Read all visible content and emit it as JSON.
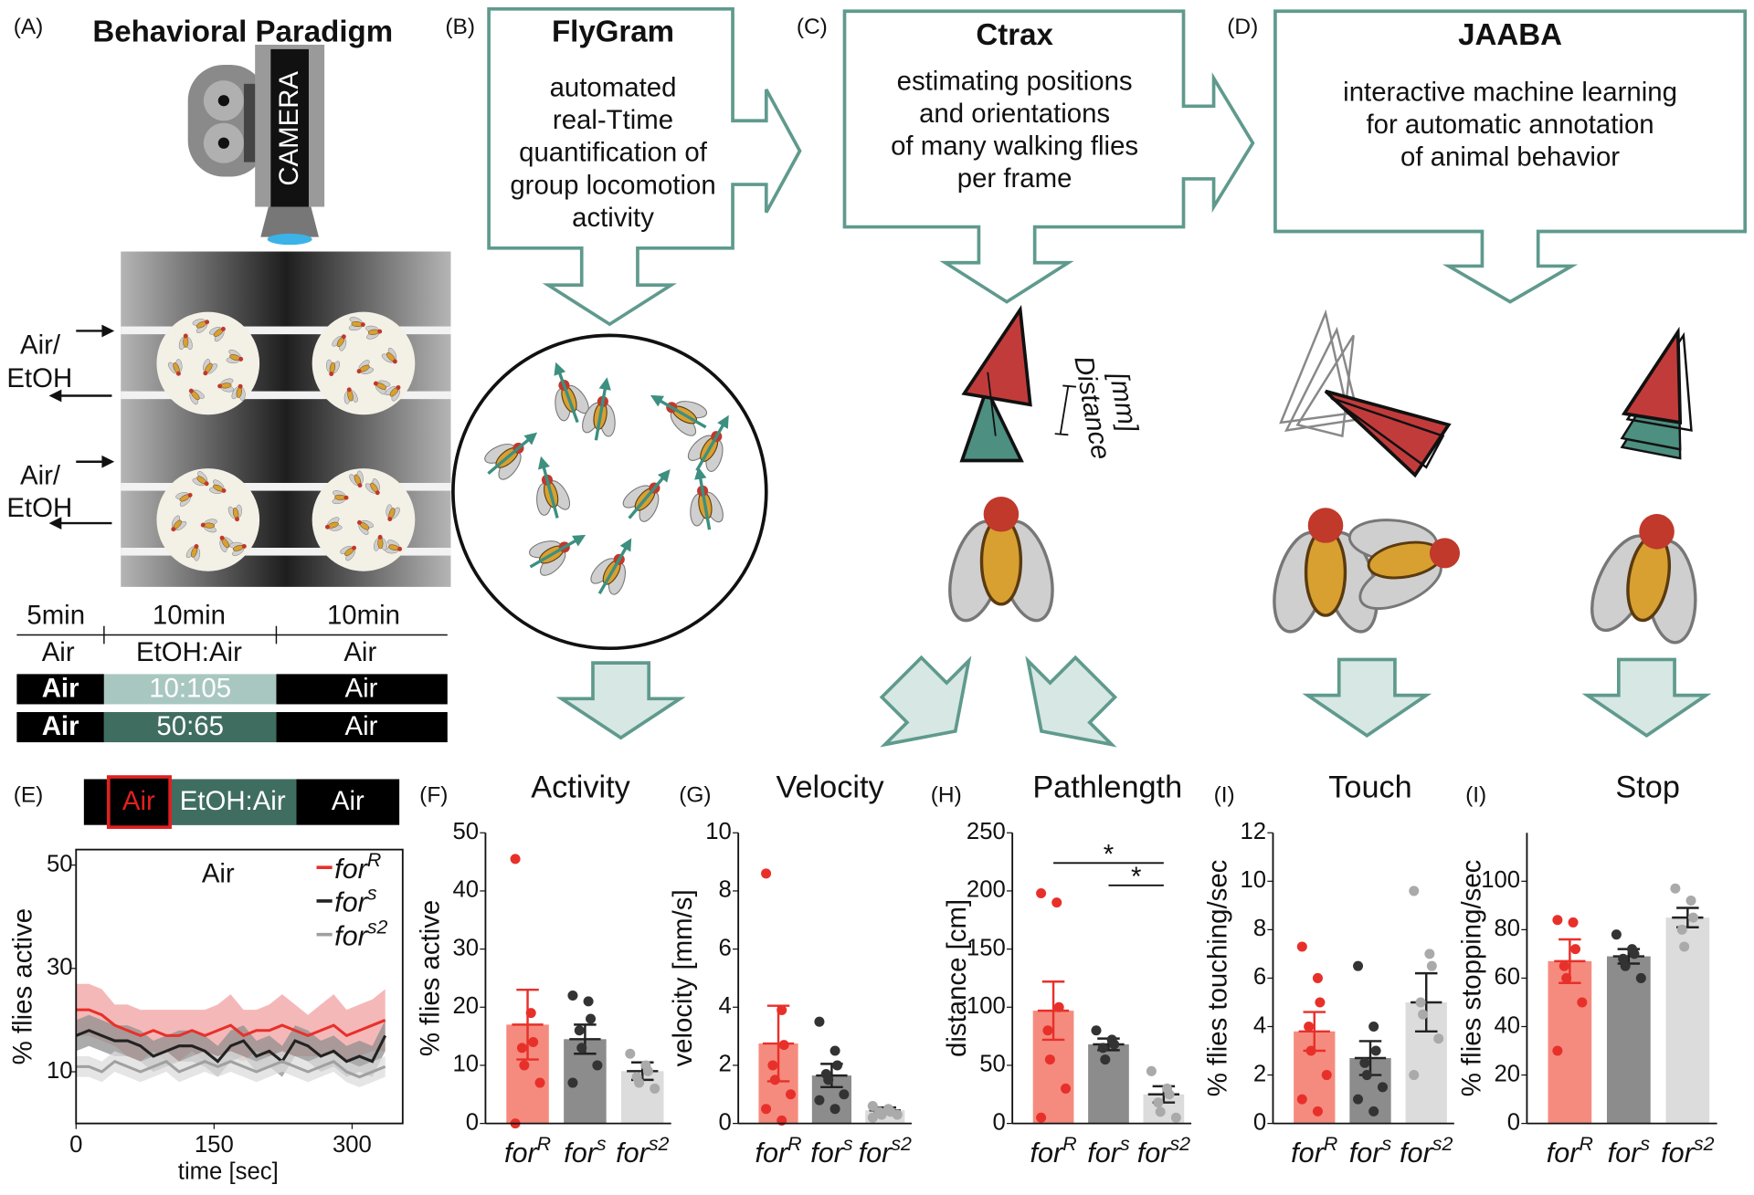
{
  "panels": {
    "a": {
      "label": "(A)",
      "title": "Behavioral Paradigm",
      "camera": "CAMERA",
      "inlets": [
        [
          "Air/",
          "EtOH"
        ],
        [
          "Air/",
          "EtOH"
        ]
      ],
      "durations": [
        "5min",
        "10min",
        "10min"
      ],
      "phases": [
        "Air",
        "EtOH:Air",
        "Air"
      ],
      "protocols": [
        [
          "Air",
          "10:105",
          "Air"
        ],
        [
          "Air",
          "50:65",
          "Air"
        ]
      ]
    },
    "b": {
      "label": "(B)",
      "title": "FlyGram",
      "lines": [
        "automated",
        "real-Ttime",
        "quantification of",
        "group locomotion",
        "activity"
      ]
    },
    "c": {
      "label": "(C)",
      "title": "Ctrax",
      "lines": [
        "estimating positions",
        "and orientations",
        "of many walking flies",
        "per frame"
      ],
      "distance": [
        "Distance",
        "[mm]"
      ]
    },
    "d": {
      "label": "(D)",
      "title": "JAABA",
      "lines": [
        "interactive machine learning",
        "for automatic annotation",
        "of animal behavior"
      ]
    },
    "e": {
      "label": "(E)",
      "protocol": [
        "Air",
        "EtOH:Air",
        "Air"
      ]
    }
  },
  "chart_data": [
    {
      "type": "line",
      "annotation": "Air",
      "xlabel": "time [sec]",
      "ylabel": "% flies active",
      "x": [
        0,
        14,
        28,
        42,
        56,
        70,
        84,
        98,
        112,
        126,
        140,
        154,
        168,
        182,
        196,
        210,
        224,
        238,
        252,
        266,
        280,
        294,
        308,
        322,
        336
      ],
      "xlim": [
        0,
        355
      ],
      "xticks": [
        0,
        150,
        300
      ],
      "ylim": [
        0,
        53
      ],
      "yticks": [
        10,
        30,
        50
      ],
      "series": [
        {
          "name": "for",
          "superscript": "R",
          "color": "#e8302a",
          "band_color": "#f2a0a0",
          "values": [
            22,
            22,
            21,
            19,
            18,
            17,
            18,
            17,
            17,
            18,
            17,
            18,
            19,
            17,
            18,
            18,
            19,
            18,
            17,
            18,
            19,
            17,
            18,
            19,
            20
          ],
          "errors": [
            5,
            5,
            5,
            4,
            5,
            5,
            4,
            5,
            5,
            4,
            5,
            5,
            6,
            5,
            4,
            5,
            6,
            5,
            4,
            5,
            6,
            5,
            5,
            5,
            6
          ]
        },
        {
          "name": "for",
          "superscript": "s",
          "color": "#222222",
          "band_color": "#8f8f8f",
          "values": [
            17,
            18,
            17,
            16,
            16,
            15,
            13,
            14,
            15,
            15,
            14,
            12,
            15,
            16,
            13,
            14,
            12,
            16,
            15,
            13,
            14,
            12,
            13,
            12,
            17
          ],
          "errors": [
            3,
            3,
            3,
            3,
            3,
            3,
            3,
            3,
            3,
            3,
            3,
            3,
            3,
            3,
            3,
            3,
            3,
            3,
            3,
            3,
            3,
            3,
            3,
            3,
            3
          ]
        },
        {
          "name": "for",
          "superscript": "s2",
          "color": "#a0a0a0",
          "band_color": "#dcdcdc",
          "values": [
            11,
            11,
            10,
            12,
            11,
            10,
            11,
            12,
            10,
            11,
            12,
            11,
            12,
            11,
            10,
            11,
            12,
            11,
            10,
            11,
            12,
            10,
            9,
            10,
            11
          ],
          "errors": [
            2,
            2,
            2,
            2,
            2,
            2,
            2,
            2,
            2,
            2,
            2,
            2,
            2,
            2,
            2,
            2,
            2,
            2,
            2,
            2,
            2,
            2,
            2,
            2,
            2
          ]
        }
      ]
    },
    {
      "type": "bar",
      "label": "(F)",
      "title": "Activity",
      "ylabel": "% flies active",
      "categories": [
        "for",
        "for",
        "for"
      ],
      "category_superscripts": [
        "R",
        "s",
        "s2"
      ],
      "values": [
        17,
        14.5,
        9
      ],
      "errors": [
        6,
        2.5,
        1.5
      ],
      "colors": [
        "#f58b7e",
        "#8c8c8c",
        "#dcdcdc"
      ],
      "point_colors": [
        "#e8302a",
        "#333333",
        "#aaaaaa"
      ],
      "points": [
        [
          45.5,
          19,
          14,
          13,
          10,
          7,
          0
        ],
        [
          22,
          21,
          18,
          16,
          13,
          10,
          7
        ],
        [
          12,
          10,
          9,
          8,
          7,
          6
        ]
      ],
      "ylim": [
        0,
        50
      ],
      "yticks": [
        0,
        10,
        20,
        30,
        40,
        50
      ]
    },
    {
      "type": "bar",
      "label": "(G)",
      "title": "Velocity",
      "ylabel": "velocity [mm/s]",
      "categories": [
        "for",
        "for",
        "for"
      ],
      "category_superscripts": [
        "R",
        "s",
        "s2"
      ],
      "values": [
        2.75,
        1.65,
        0.45
      ],
      "errors": [
        1.3,
        0.4,
        0.1
      ],
      "colors": [
        "#f58b7e",
        "#8c8c8c",
        "#dcdcdc"
      ],
      "point_colors": [
        "#e8302a",
        "#333333",
        "#aaaaaa"
      ],
      "points": [
        [
          8.6,
          3.9,
          2.7,
          2,
          1.5,
          1,
          0.5,
          0.1
        ],
        [
          3.5,
          2.5,
          2,
          1.7,
          1.5,
          1,
          0.8,
          0.5
        ],
        [
          0.6,
          0.5,
          0.4,
          0.4,
          0.3,
          0.3,
          0.2
        ]
      ],
      "ylim": [
        0,
        10
      ],
      "yticks": [
        0,
        2,
        4,
        6,
        8,
        10
      ]
    },
    {
      "type": "bar",
      "label": "(H)",
      "title": "Pathlength",
      "ylabel": "distance [cm]",
      "categories": [
        "for",
        "for",
        "for"
      ],
      "category_superscripts": [
        "R",
        "s",
        "s2"
      ],
      "values": [
        97,
        68,
        25
      ],
      "errors": [
        25,
        5,
        7
      ],
      "colors": [
        "#f58b7e",
        "#8c8c8c",
        "#dcdcdc"
      ],
      "point_colors": [
        "#e8302a",
        "#333333",
        "#aaaaaa"
      ],
      "points": [
        [
          198,
          190,
          100,
          80,
          55,
          30,
          5
        ],
        [
          80,
          72,
          68,
          65,
          55
        ],
        [
          45,
          30,
          25,
          18,
          10,
          5
        ]
      ],
      "ylim": [
        0,
        250
      ],
      "yticks": [
        0,
        50,
        100,
        150,
        200,
        250
      ],
      "significance": [
        "*",
        "*"
      ]
    },
    {
      "type": "bar",
      "label": "(I)",
      "title": "Touch",
      "ylabel": "% flies touching/sec",
      "categories": [
        "for",
        "for",
        "for"
      ],
      "category_superscripts": [
        "R",
        "s",
        "s2"
      ],
      "values": [
        3.8,
        2.7,
        5
      ],
      "errors": [
        0.8,
        0.7,
        1.2
      ],
      "colors": [
        "#f58b7e",
        "#8c8c8c",
        "#dcdcdc"
      ],
      "point_colors": [
        "#e8302a",
        "#333333",
        "#aaaaaa"
      ],
      "points": [
        [
          7.3,
          6,
          5,
          4,
          3,
          2,
          1,
          0.5
        ],
        [
          6.5,
          4,
          3,
          2.5,
          2,
          1.5,
          1,
          0.5
        ],
        [
          9.6,
          7,
          6.5,
          5,
          4.5,
          3.5,
          2
        ]
      ],
      "ylim": [
        0,
        12
      ],
      "yticks": [
        0,
        2,
        4,
        6,
        8,
        10,
        12
      ]
    },
    {
      "type": "bar",
      "label": "(I)",
      "title": "Stop",
      "ylabel": "% flies stopping/sec",
      "categories": [
        "for",
        "for",
        "for"
      ],
      "category_superscripts": [
        "R",
        "s",
        "s2"
      ],
      "values": [
        67,
        69,
        85
      ],
      "errors": [
        9,
        3,
        4
      ],
      "colors": [
        "#f58b7e",
        "#8c8c8c",
        "#dcdcdc"
      ],
      "point_colors": [
        "#e8302a",
        "#333333",
        "#aaaaaa"
      ],
      "points": [
        [
          84,
          83,
          72,
          65,
          60,
          50,
          30
        ],
        [
          78,
          72,
          70,
          68,
          65,
          60
        ],
        [
          97,
          92,
          85,
          80,
          73
        ]
      ],
      "ylim": [
        0,
        120
      ],
      "yticks": [
        0,
        20,
        40,
        60,
        80,
        100
      ]
    }
  ]
}
